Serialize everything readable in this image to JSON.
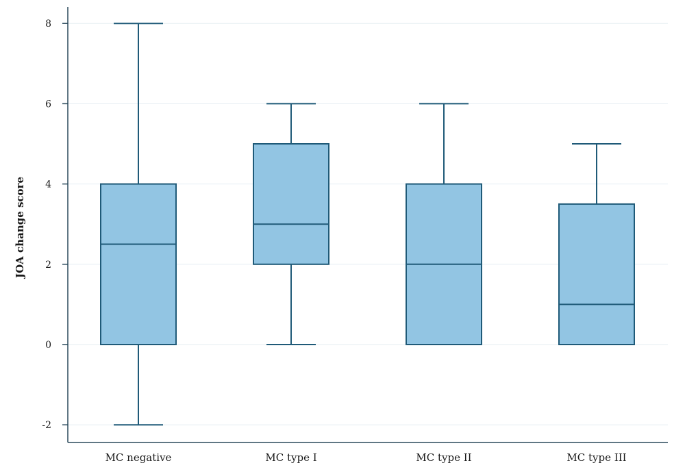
{
  "chart_data": {
    "type": "box",
    "title": "",
    "xlabel": "",
    "ylabel": "JOA change score",
    "ylim": [
      -2.5,
      8.4
    ],
    "yticks": [
      -2,
      0,
      2,
      4,
      6,
      8
    ],
    "ytick_labels": [
      "-2",
      "0",
      "2",
      "4",
      "6",
      "8"
    ],
    "grid": true,
    "categories": [
      "MC negative",
      "MC type I",
      "MC type II",
      "MC type III"
    ],
    "boxes": [
      {
        "min": -2,
        "q1": 0,
        "median": 2.5,
        "q3": 4,
        "max": 8
      },
      {
        "min": 0,
        "q1": 2,
        "median": 3,
        "q3": 5,
        "max": 6
      },
      {
        "min": 0,
        "q1": 0,
        "median": 2,
        "q3": 4,
        "max": 6
      },
      {
        "min": 0,
        "q1": 0,
        "median": 1,
        "q3": 3.5,
        "max": 5
      }
    ],
    "colors": {
      "box_fill": "#92c5e3",
      "box_stroke": "#1f5a78",
      "axis": "#2b4a5c",
      "grid": "#e6eef2"
    }
  }
}
